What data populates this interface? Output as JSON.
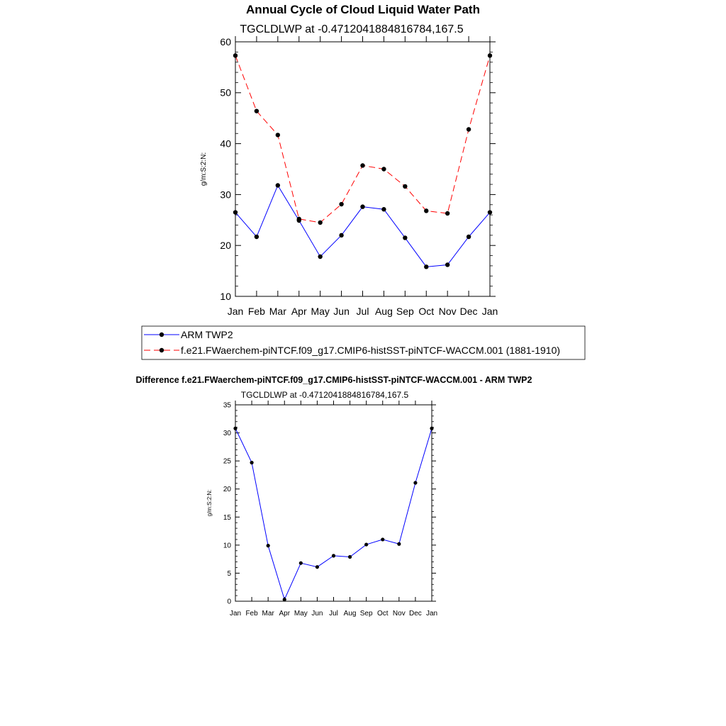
{
  "page": {
    "title": "Annual Cycle of Cloud Liquid Water Path",
    "diff_title": "Difference f.e21.FWaerchem-piNTCF.f09_g17.CMIP6-histSST-piNTCF-WACCM.001 - ARM TWP2"
  },
  "colors": {
    "obs": "#0000ff",
    "model": "#ff0000",
    "diff": "#0000ff",
    "marker": "#000000"
  },
  "chart_data": [
    {
      "type": "line",
      "subtitle": "TGCLDLWP at -0.4712041884816784,167.5",
      "ylabel": "g/m:S:2:N:",
      "xlabel": "",
      "categories": [
        "Jan",
        "Feb",
        "Mar",
        "Apr",
        "May",
        "Jun",
        "Jul",
        "Aug",
        "Sep",
        "Oct",
        "Nov",
        "Dec",
        "Jan"
      ],
      "ylim": [
        10,
        60
      ],
      "yticks": [
        10,
        20,
        30,
        40,
        50,
        60
      ],
      "legend_position": "bottom",
      "series": [
        {
          "name": "ARM TWP2",
          "style": "solid",
          "color": "#0000ff",
          "values": [
            26.5,
            21.7,
            31.8,
            24.9,
            17.8,
            22.0,
            27.6,
            27.1,
            21.5,
            15.8,
            16.2,
            21.7,
            26.5
          ]
        },
        {
          "name": "f.e21.FWaerchem-piNTCF.f09_g17.CMIP6-histSST-piNTCF-WACCM.001 (1881-1910)",
          "style": "dashed",
          "color": "#ff0000",
          "values": [
            57.3,
            46.4,
            41.7,
            25.2,
            24.5,
            28.1,
            35.7,
            35.0,
            31.6,
            26.8,
            26.3,
            42.8,
            57.3
          ]
        }
      ]
    },
    {
      "type": "line",
      "subtitle": "TGCLDLWP at -0.4712041884816784,167.5",
      "ylabel": "g/m:S:2:N:",
      "xlabel": "",
      "categories": [
        "Jan",
        "Feb",
        "Mar",
        "Apr",
        "May",
        "Jun",
        "Jul",
        "Aug",
        "Sep",
        "Oct",
        "Nov",
        "Dec",
        "Jan"
      ],
      "ylim": [
        0,
        35
      ],
      "yticks": [
        0,
        5,
        10,
        15,
        20,
        25,
        30,
        35
      ],
      "series": [
        {
          "style": "solid",
          "color": "#0000ff",
          "values": [
            30.8,
            24.7,
            9.9,
            0.3,
            6.8,
            6.1,
            8.1,
            7.9,
            10.1,
            11.0,
            10.2,
            21.1,
            30.8
          ]
        }
      ]
    }
  ]
}
